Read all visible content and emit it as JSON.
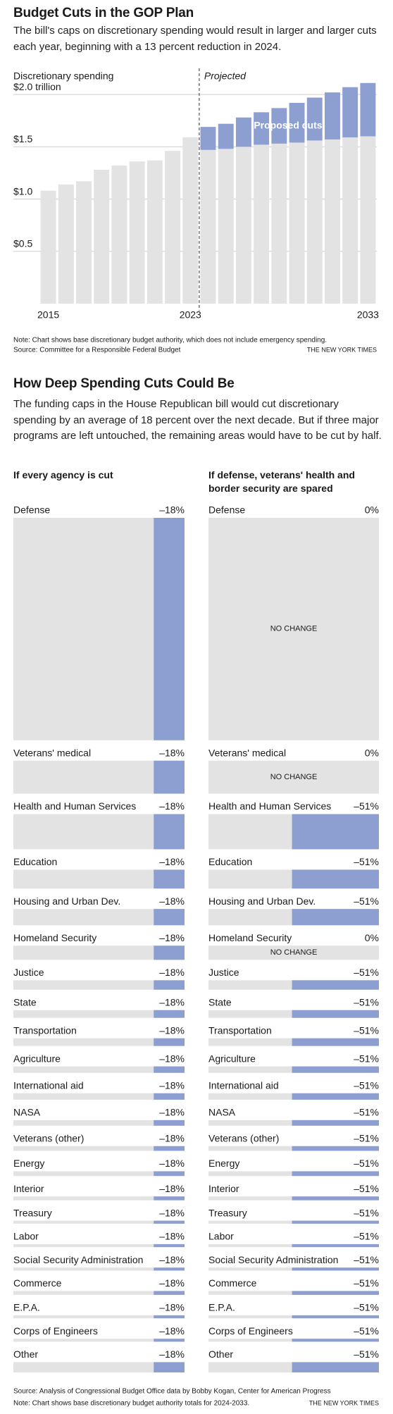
{
  "chart_data": [
    {
      "type": "bar",
      "title": "Budget Cuts in the GOP Plan",
      "subtitle": "The bill's caps on discretionary spending would result in larger and larger cuts each year, beginning with a 13 percent reduction in 2024.",
      "y_label": "Discretionary spending",
      "projected_label": "Projected",
      "x": [
        2015,
        2016,
        2017,
        2018,
        2019,
        2020,
        2021,
        2022,
        2023,
        2024,
        2025,
        2026,
        2027,
        2028,
        2029,
        2030,
        2031,
        2032,
        2033
      ],
      "xlim": [
        2014.5,
        2033.5
      ],
      "xticks": [
        2015,
        2023,
        2033
      ],
      "ylim": [
        0,
        2.25
      ],
      "yticks": [
        {
          "value": 0.5,
          "label": "$0.5"
        },
        {
          "value": 1,
          "label": "$1.0"
        },
        {
          "value": 1.5,
          "label": "$1.5"
        },
        {
          "value": 2,
          "label": "$2.0 trillion"
        }
      ],
      "grid": true,
      "stacked": true,
      "series": [
        {
          "color": "#e3e3e3",
          "values": [
            1.08,
            1.14,
            1.17,
            1.28,
            1.32,
            1.36,
            1.37,
            1.46,
            1.59,
            1.47,
            1.48,
            1.5,
            1.52,
            1.53,
            1.54,
            1.56,
            1.57,
            1.59,
            1.6
          ]
        },
        {
          "name": "Proposed cuts",
          "color": "#8d9fd1",
          "values": [
            null,
            null,
            null,
            null,
            null,
            null,
            null,
            null,
            null,
            0.22,
            0.24,
            0.28,
            0.31,
            0.34,
            0.38,
            0.41,
            0.45,
            0.48,
            0.51
          ]
        }
      ],
      "note": "Note: Chart shows base discretionary budget authority, which does not include emergency spending.",
      "source": "Source: Committee for a Responsible Federal Budget",
      "credit": "THE NEW YORK TIMES"
    },
    {
      "type": "mosaic",
      "title": "How Deep Spending Cuts Could Be",
      "subtitle": "The funding caps in the House Republican bill would cut discretionary spending by an average of 18 percent over the next decade. But if three major programs are left untouched, the remaining areas would have to be cut by half.",
      "categories": [
        "Defense",
        "Veterans' medical",
        "Health and Human Services",
        "Education",
        "Housing and Urban Dev.",
        "Homeland Security",
        "Justice",
        "State",
        "Transportation",
        "Agriculture",
        "International aid",
        "NASA",
        "Veterans (other)",
        "Energy",
        "Interior",
        "Treasury",
        "Labor",
        "Social Security Administration",
        "Commerce",
        "E.P.A.",
        "Corps of Engineers",
        "Other"
      ],
      "budget_share": [
        51.9,
        7.7,
        8.2,
        4.4,
        3.8,
        3.3,
        2.2,
        1.8,
        1.8,
        1.5,
        1.5,
        1.3,
        1.1,
        1.1,
        0.9,
        0.7,
        0.7,
        0.7,
        0.9,
        0.7,
        0.7,
        2.4
      ],
      "color": "#e3e3e3",
      "no_change_label": "NO CHANGE",
      "series": [
        {
          "name": "If every agency is cut",
          "color": "#8d9fd1",
          "values": [
            -18,
            -18,
            -18,
            -18,
            -18,
            -18,
            -18,
            -18,
            -18,
            -18,
            -18,
            -18,
            -18,
            -18,
            -18,
            -18,
            -18,
            -18,
            -18,
            -18,
            -18,
            -18
          ],
          "value_labels": [
            "–18%",
            "–18%",
            "–18%",
            "–18%",
            "–18%",
            "–18%",
            "–18%",
            "–18%",
            "–18%",
            "–18%",
            "–18%",
            "–18%",
            "–18%",
            "–18%",
            "–18%",
            "–18%",
            "–18%",
            "–18%",
            "–18%",
            "–18%",
            "–18%",
            "–18%"
          ]
        },
        {
          "name": "If defense, veterans' health and border security are spared",
          "color": "#8d9fd1",
          "values": [
            0,
            0,
            -51,
            -51,
            -51,
            0,
            -51,
            -51,
            -51,
            -51,
            -51,
            -51,
            -51,
            -51,
            -51,
            -51,
            -51,
            -51,
            -51,
            -51,
            -51,
            -51
          ],
          "value_labels": [
            "0%",
            "0%",
            "–51%",
            "–51%",
            "–51%",
            "0%",
            "–51%",
            "–51%",
            "–51%",
            "–51%",
            "–51%",
            "–51%",
            "–51%",
            "–51%",
            "–51%",
            "–51%",
            "–51%",
            "–51%",
            "–51%",
            "–51%",
            "–51%",
            "–51%"
          ]
        }
      ],
      "source": "Source: Analysis of Congressional Budget Office data by Bobby Kogan, Center for American Progress",
      "note": "Note: Chart shows base discretionary budget authority totals for 2024-2033.",
      "credit": "THE NEW YORK TIMES"
    }
  ]
}
